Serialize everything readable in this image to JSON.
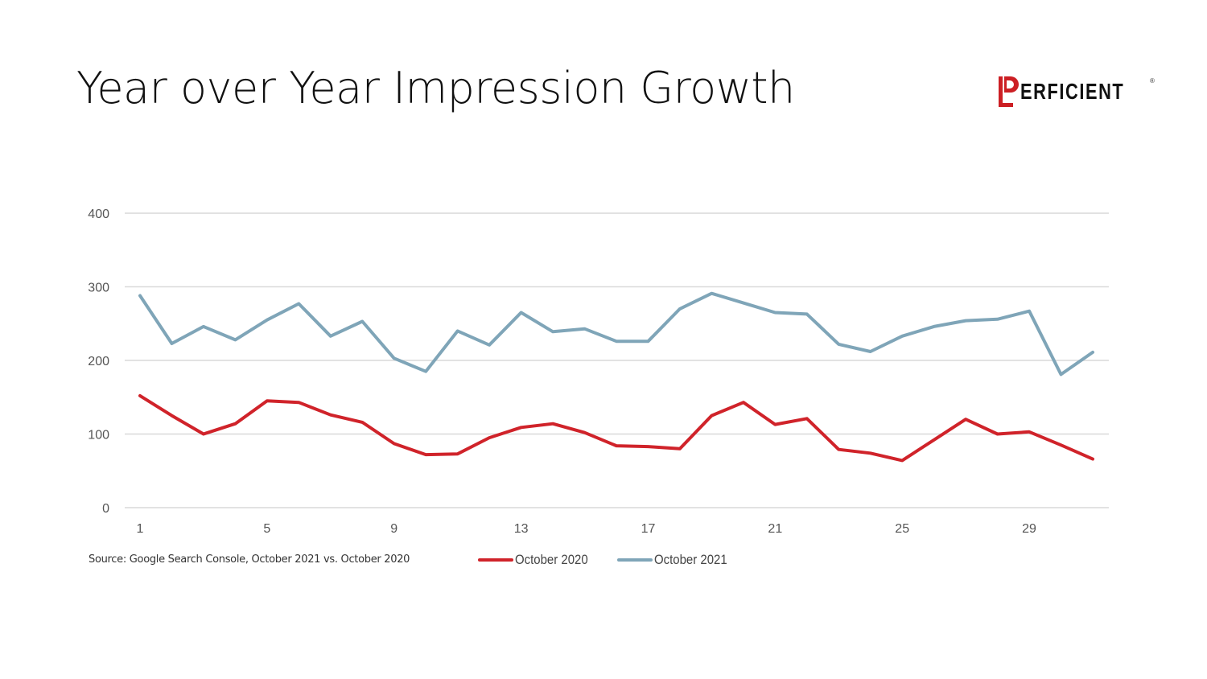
{
  "slide": {
    "title": "Year over Year Impression Growth",
    "logo_text": "ERFICIENT",
    "logo_reg": "®",
    "source": "Source: Google Search Console, October 2021 vs. October 2020"
  },
  "colors": {
    "accent": "#cc1f24",
    "series_2020": "#d0232a",
    "series_2021": "#7fa5b8",
    "grid": "#d9d9d9",
    "background": "#ffffff"
  },
  "chart_data": {
    "type": "line",
    "title": "",
    "xlabel": "",
    "ylabel": "",
    "x": [
      1,
      2,
      3,
      4,
      5,
      6,
      7,
      8,
      9,
      10,
      11,
      12,
      13,
      14,
      15,
      16,
      17,
      18,
      19,
      20,
      21,
      22,
      23,
      24,
      25,
      26,
      27,
      28,
      29,
      30,
      31
    ],
    "x_tick_labels": [
      "1",
      "5",
      "9",
      "13",
      "17",
      "21",
      "25",
      "29"
    ],
    "y_tick_labels": [
      "0",
      "100",
      "200",
      "300",
      "400"
    ],
    "ylim": [
      0,
      400
    ],
    "grid": "horizontal",
    "legend_position": "bottom",
    "series": [
      {
        "name": "October 2020",
        "color": "#d0232a",
        "values": [
          152,
          125,
          100,
          114,
          145,
          143,
          126,
          116,
          87,
          72,
          73,
          95,
          109,
          114,
          102,
          84,
          83,
          80,
          125,
          143,
          113,
          121,
          79,
          74,
          64,
          92,
          120,
          100,
          103,
          85,
          66
        ]
      },
      {
        "name": "October 2021",
        "color": "#7fa5b8",
        "values": [
          288,
          223,
          246,
          228,
          255,
          277,
          233,
          253,
          203,
          185,
          240,
          221,
          265,
          239,
          243,
          226,
          226,
          270,
          291,
          278,
          265,
          263,
          222,
          212,
          233,
          246,
          254,
          256,
          267,
          181,
          211
        ]
      }
    ]
  }
}
